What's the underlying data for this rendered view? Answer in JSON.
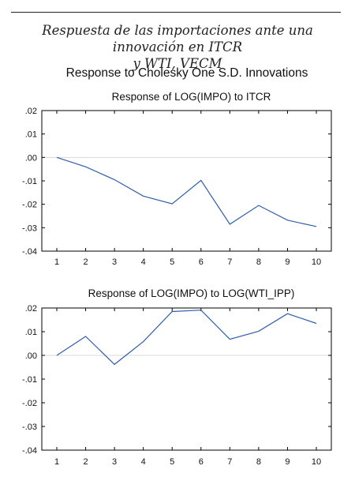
{
  "caption": {
    "line1": "Respuesta de las importaciones ante una innovación en ITCR",
    "line2": "y WTI, VECM"
  },
  "main_title": "Response to Cholesky One S.D. Innovations",
  "colors": {
    "line": "#2f5ea8",
    "zero_line": "#d9d9d9",
    "frame": "#000000"
  },
  "chart_data": [
    {
      "type": "line",
      "title": "Response of LOG(IMPO) to ITCR",
      "x": [
        1,
        2,
        3,
        4,
        5,
        6,
        7,
        8,
        9,
        10
      ],
      "x_tick_labels": [
        "1",
        "2",
        "3",
        "4",
        "5",
        "6",
        "7",
        "8",
        "9",
        "10"
      ],
      "y": [
        0.0,
        -0.004,
        -0.0095,
        -0.0165,
        -0.0198,
        -0.0098,
        -0.0285,
        -0.0205,
        -0.0268,
        -0.0295
      ],
      "ylim": [
        -0.04,
        0.02
      ],
      "y_ticks": [
        0.02,
        0.01,
        0.0,
        -0.01,
        -0.02,
        -0.03,
        -0.04
      ],
      "y_tick_labels": [
        ".02",
        ".01",
        ".00",
        "-.01",
        "-.02",
        "-.03",
        "-.04"
      ],
      "zero_line": true,
      "grid": false
    },
    {
      "type": "line",
      "title": "Response of LOG(IMPO) to LOG(WTI_IPP)",
      "x": [
        1,
        2,
        3,
        4,
        5,
        6,
        7,
        8,
        9,
        10
      ],
      "x_tick_labels": [
        "1",
        "2",
        "3",
        "4",
        "5",
        "6",
        "7",
        "8",
        "9",
        "10"
      ],
      "y": [
        0.0,
        0.008,
        -0.0038,
        0.0058,
        0.0185,
        0.0191,
        0.0068,
        0.0102,
        0.0176,
        0.0135
      ],
      "ylim": [
        -0.04,
        0.02
      ],
      "y_ticks": [
        0.02,
        0.01,
        0.0,
        -0.01,
        -0.02,
        -0.03,
        -0.04
      ],
      "y_tick_labels": [
        ".02",
        ".01",
        ".00",
        "-.01",
        "-.02",
        "-.03",
        "-.04"
      ],
      "zero_line": true,
      "grid": false
    }
  ]
}
